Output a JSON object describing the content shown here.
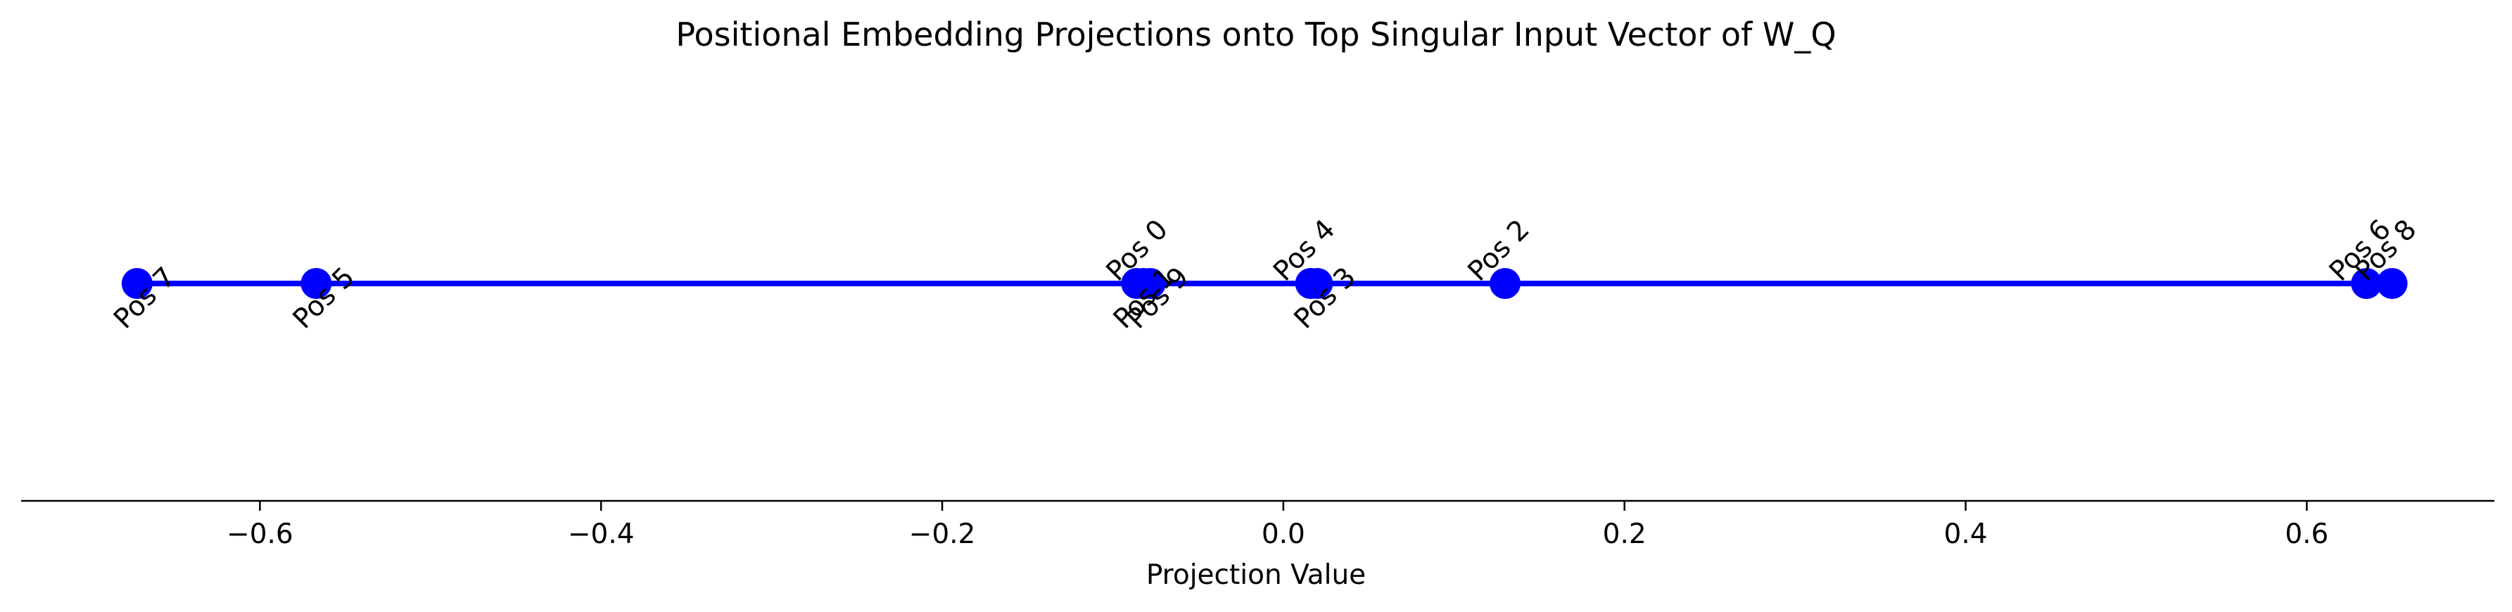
{
  "chart_data": {
    "type": "scatter",
    "title": "Positional Embedding Projections onto Top Singular Input Vector of W_Q",
    "xlabel": "Projection Value",
    "ylabel": "",
    "xlim": [
      -0.74,
      0.71
    ],
    "grid": false,
    "x_ticks": [
      -0.6,
      -0.4,
      -0.2,
      0.0,
      0.2,
      0.4,
      0.6
    ],
    "x_tick_labels": [
      "−0.6",
      "−0.4",
      "−0.2",
      "0.0",
      "0.2",
      "0.4",
      "0.6"
    ],
    "points": [
      {
        "label": "Pos 0",
        "x": -0.082,
        "label_side": "above"
      },
      {
        "label": "Pos 1",
        "x": -0.086,
        "label_side": "below"
      },
      {
        "label": "Pos 2",
        "x": 0.13,
        "label_side": "above"
      },
      {
        "label": "Pos 3",
        "x": 0.02,
        "label_side": "below"
      },
      {
        "label": "Pos 4",
        "x": 0.016,
        "label_side": "above"
      },
      {
        "label": "Pos 5",
        "x": -0.567,
        "label_side": "below"
      },
      {
        "label": "Pos 6",
        "x": 0.635,
        "label_side": "above"
      },
      {
        "label": "Pos 7",
        "x": -0.672,
        "label_side": "below"
      },
      {
        "label": "Pos 8",
        "x": 0.65,
        "label_side": "above"
      },
      {
        "label": "Pos 9",
        "x": -0.078,
        "label_side": "below"
      }
    ],
    "line_color": "#0000ff",
    "marker_color": "#0000ff"
  }
}
